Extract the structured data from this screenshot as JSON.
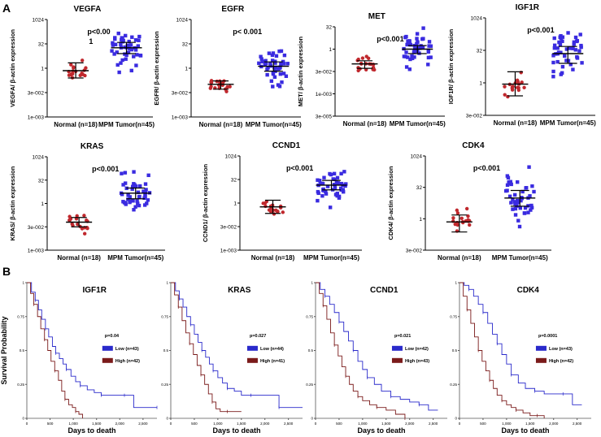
{
  "panels": {
    "a": "A",
    "b": "B"
  },
  "colors": {
    "normal": "#c0282d",
    "tumor": "#3a2be0",
    "low": "#2a2acb",
    "high": "#7a1a1a",
    "axis": "#000000"
  },
  "chart_data": [
    {
      "id": "vegfa",
      "type": "scatter",
      "title": "VEGFA",
      "ylabel": "VEGFA/ β-actin expression",
      "categories": [
        "Normal (n=18)",
        "MPM Tumor(n=45)"
      ],
      "yticks": [
        "1024",
        "32",
        "1",
        "3e-002",
        "1e-003"
      ],
      "ylim_log2": [
        -10,
        10
      ],
      "pvalue": "p<0.00",
      "pvalue_extra": "1",
      "mean_log2": [
        -0.5,
        4.2
      ],
      "ci_log2": [
        [
          -2.0,
          1.1
        ],
        [
          3.0,
          5.3
        ]
      ],
      "n": [
        18,
        45
      ]
    },
    {
      "id": "egfr",
      "type": "scatter",
      "title": "EGFR",
      "ylabel": "EGFR/ β-actin expression",
      "categories": [
        "Normal (n=18)",
        "MPM Tumor(n=45)"
      ],
      "yticks": [
        "1024",
        "32",
        "1",
        "3e-002",
        "1e-003"
      ],
      "ylim_log2": [
        -10,
        10
      ],
      "pvalue": "p< 0.001",
      "mean_log2": [
        -3.3,
        0.4
      ],
      "ci_log2": [
        [
          -4.3,
          -2.6
        ],
        [
          -0.6,
          1.3
        ]
      ],
      "n": [
        18,
        45
      ]
    },
    {
      "id": "met",
      "type": "scatter",
      "title": "MET",
      "ylabel": "MET/ β-actin expression",
      "categories": [
        "Normal (n=18)",
        "MPM Tumor(n=45)"
      ],
      "yticks": [
        "32",
        "1",
        "3e-002",
        "1e-003",
        "3e-005"
      ],
      "ylim_log2": [
        -15,
        5
      ],
      "pvalue": "p<0.001",
      "mean_log2": [
        -3.3,
        0.0
      ],
      "ci_log2": [
        [
          -4.3,
          -2.6
        ],
        [
          -1.0,
          0.8
        ]
      ],
      "n": [
        18,
        45
      ]
    },
    {
      "id": "igf1r",
      "type": "scatter",
      "title": "IGF1R",
      "ylabel": "IGF1R/ β-actin expression",
      "categories": [
        "Normal (n=18)",
        "MPM Tumor(n=45)"
      ],
      "yticks": [
        "1024",
        "32",
        "1",
        "3e-002"
      ],
      "ylim_log2": [
        -5,
        10
      ],
      "pvalue": "p<0.001",
      "mean_log2": [
        -0.2,
        4.5
      ],
      "ci_log2": [
        [
          -2.0,
          1.7
        ],
        [
          3.0,
          5.6
        ]
      ],
      "n": [
        18,
        45
      ]
    },
    {
      "id": "kras",
      "type": "scatter",
      "title": "KRAS",
      "ylabel": "KRAS/ β-actin expression",
      "categories": [
        "Normal (n=18)",
        "MPM Tumor(n=45)"
      ],
      "yticks": [
        "1024",
        "32",
        "1",
        "3e-002",
        "1e-003"
      ],
      "ylim_log2": [
        -10,
        10
      ],
      "pvalue": "p<0.001",
      "mean_log2": [
        -4.0,
        2.2
      ],
      "ci_log2": [
        [
          -5.0,
          -3.0
        ],
        [
          1.0,
          3.3
        ]
      ],
      "n": [
        18,
        45
      ]
    },
    {
      "id": "ccnd1",
      "type": "scatter",
      "title": "CCND1",
      "ylabel": "CCND1/ β-actin expression",
      "categories": [
        "Normal (n=18)",
        "MPM Tumor(n=45)"
      ],
      "yticks": [
        "1024",
        "32",
        "1",
        "3e-002",
        "1e-003"
      ],
      "ylim_log2": [
        -10,
        10
      ],
      "pvalue": "p<0.001",
      "mean_log2": [
        -0.8,
        3.8
      ],
      "ci_log2": [
        [
          -2.2,
          0.6
        ],
        [
          2.8,
          4.8
        ]
      ],
      "n": [
        18,
        45
      ]
    },
    {
      "id": "cdk4",
      "type": "scatter",
      "title": "CDK4",
      "ylabel": "CDK4/ β-actin expression",
      "categories": [
        "Normal (n=18)",
        "MPM Tumor(n=45)"
      ],
      "yticks": [
        "1024",
        "32",
        "1",
        "3e-002"
      ],
      "ylim_log2": [
        -5,
        10
      ],
      "pvalue": "p<0.001",
      "mean_log2": [
        -0.5,
        3.3
      ],
      "ci_log2": [
        [
          -2.1,
          0.6
        ],
        [
          2.0,
          4.5
        ]
      ],
      "n": [
        18,
        45
      ]
    },
    {
      "id": "km_igf1r",
      "type": "line",
      "title": "IGF1R",
      "xlabel": "Days to death",
      "ylabel": "Survival Probability",
      "xticks": [
        "0",
        "500",
        "1,000",
        "1,500",
        "2,000",
        "2,500"
      ],
      "xtick_values": [
        0,
        500,
        1000,
        1500,
        2000,
        2500
      ],
      "xlim": [
        0,
        2800
      ],
      "yticks": [
        "1",
        "0.75",
        "0.5",
        "0.25",
        "0"
      ],
      "ylim": [
        0,
        1
      ],
      "pvalue": "p=0.04",
      "series": [
        {
          "name": "Low (n=43)",
          "x": [
            0,
            100,
            180,
            250,
            320,
            400,
            470,
            550,
            620,
            700,
            780,
            850,
            950,
            1050,
            1150,
            1300,
            1450,
            1600,
            1750,
            1900,
            2100,
            2300,
            2500,
            2800
          ],
          "y": [
            1,
            0.93,
            0.87,
            0.8,
            0.73,
            0.66,
            0.6,
            0.53,
            0.48,
            0.44,
            0.4,
            0.36,
            0.31,
            0.27,
            0.24,
            0.21,
            0.19,
            0.17,
            0.17,
            0.17,
            0.17,
            0.08,
            0.08,
            0.08
          ]
        },
        {
          "name": "High (n=42)",
          "x": [
            0,
            80,
            150,
            230,
            300,
            380,
            450,
            520,
            600,
            680,
            750,
            820,
            900,
            980,
            1050,
            1120,
            1200
          ],
          "y": [
            1,
            0.92,
            0.84,
            0.75,
            0.66,
            0.58,
            0.5,
            0.42,
            0.35,
            0.28,
            0.2,
            0.14,
            0.1,
            0.08,
            0.05,
            0.03,
            0.0
          ]
        }
      ]
    },
    {
      "id": "km_kras",
      "type": "line",
      "title": "KRAS",
      "xlabel": "Days to death",
      "ylabel": "Survival Probability",
      "xticks": [
        "0",
        "500",
        "1,000",
        "1,500",
        "2,000",
        "2,500"
      ],
      "xtick_values": [
        0,
        500,
        1000,
        1500,
        2000,
        2500
      ],
      "xlim": [
        0,
        2800
      ],
      "yticks": [
        "1",
        "0.75",
        "0.5",
        "0.25",
        "0"
      ],
      "ylim": [
        0,
        1
      ],
      "pvalue": "p=0.027",
      "series": [
        {
          "name": "Low (n=44)",
          "x": [
            0,
            100,
            180,
            260,
            340,
            420,
            500,
            580,
            660,
            740,
            820,
            900,
            1000,
            1100,
            1200,
            1350,
            1500,
            1700,
            1900,
            2100,
            2300,
            2500,
            2800
          ],
          "y": [
            1,
            0.94,
            0.88,
            0.82,
            0.75,
            0.69,
            0.62,
            0.56,
            0.5,
            0.45,
            0.4,
            0.35,
            0.3,
            0.26,
            0.22,
            0.2,
            0.17,
            0.17,
            0.17,
            0.17,
            0.08,
            0.08,
            0.08
          ]
        },
        {
          "name": "High (n=41)",
          "x": [
            0,
            80,
            160,
            240,
            320,
            400,
            480,
            560,
            640,
            720,
            800,
            880,
            960,
            1050,
            1200,
            1350,
            1500
          ],
          "y": [
            1,
            0.91,
            0.82,
            0.72,
            0.63,
            0.55,
            0.47,
            0.39,
            0.32,
            0.25,
            0.18,
            0.12,
            0.07,
            0.05,
            0.05,
            0.05,
            0.05
          ]
        }
      ]
    },
    {
      "id": "km_ccnd1",
      "type": "line",
      "title": "CCND1",
      "xlabel": "Days to death",
      "ylabel": "Survival Probability",
      "xticks": [
        "0",
        "500",
        "1,000",
        "1,500",
        "2,000",
        "2,500"
      ],
      "xtick_values": [
        0,
        500,
        1000,
        1500,
        2000,
        2500
      ],
      "xlim": [
        0,
        2800
      ],
      "yticks": [
        "1",
        "0.75",
        "0.5",
        "0.25",
        "0"
      ],
      "ylim": [
        0,
        1
      ],
      "pvalue": "p=0.021",
      "series": [
        {
          "name": "Low (n=42)",
          "x": [
            0,
            100,
            200,
            300,
            400,
            500,
            600,
            700,
            800,
            900,
            1000,
            1100,
            1250,
            1400,
            1600,
            1800,
            2000,
            2200,
            2400,
            2600
          ],
          "y": [
            1,
            0.95,
            0.9,
            0.84,
            0.78,
            0.71,
            0.64,
            0.57,
            0.5,
            0.42,
            0.36,
            0.3,
            0.25,
            0.2,
            0.16,
            0.14,
            0.12,
            0.1,
            0.06,
            0.06
          ]
        },
        {
          "name": "High (n=43)",
          "x": [
            0,
            80,
            160,
            240,
            320,
            400,
            480,
            560,
            640,
            720,
            800,
            900,
            1000,
            1150,
            1300,
            1500,
            1700,
            1900
          ],
          "y": [
            1,
            0.92,
            0.83,
            0.73,
            0.63,
            0.54,
            0.46,
            0.38,
            0.31,
            0.25,
            0.2,
            0.16,
            0.13,
            0.1,
            0.08,
            0.06,
            0.03,
            0.0
          ]
        }
      ]
    },
    {
      "id": "km_cdk4",
      "type": "line",
      "title": "CDK4",
      "xlabel": "Days to death",
      "ylabel": "Survival Probability",
      "xticks": [
        "0",
        "500",
        "1,000",
        "1,500",
        "2,000",
        "2,500"
      ],
      "xtick_values": [
        0,
        500,
        1000,
        1500,
        2000,
        2500
      ],
      "xlim": [
        0,
        2800
      ],
      "yticks": [
        "1",
        "0.75",
        "0.5",
        "0.25",
        "0"
      ],
      "ylim": [
        0,
        1
      ],
      "pvalue": "p=0.0001",
      "series": [
        {
          "name": "Low (n=43)",
          "x": [
            0,
            100,
            200,
            300,
            400,
            500,
            600,
            700,
            800,
            900,
            1000,
            1100,
            1250,
            1400,
            1600,
            1800,
            2000,
            2200,
            2400,
            2600
          ],
          "y": [
            1,
            0.98,
            0.95,
            0.9,
            0.84,
            0.78,
            0.7,
            0.62,
            0.55,
            0.47,
            0.4,
            0.32,
            0.26,
            0.22,
            0.2,
            0.18,
            0.18,
            0.18,
            0.1,
            0.1
          ]
        },
        {
          "name": "High (n=42)",
          "x": [
            0,
            80,
            160,
            240,
            320,
            400,
            480,
            560,
            640,
            720,
            800,
            900,
            1000,
            1100,
            1200,
            1350,
            1500,
            1650,
            1800
          ],
          "y": [
            1,
            0.9,
            0.8,
            0.7,
            0.6,
            0.5,
            0.42,
            0.35,
            0.28,
            0.22,
            0.17,
            0.13,
            0.1,
            0.08,
            0.06,
            0.04,
            0.02,
            0.02,
            0.0
          ]
        }
      ]
    }
  ]
}
